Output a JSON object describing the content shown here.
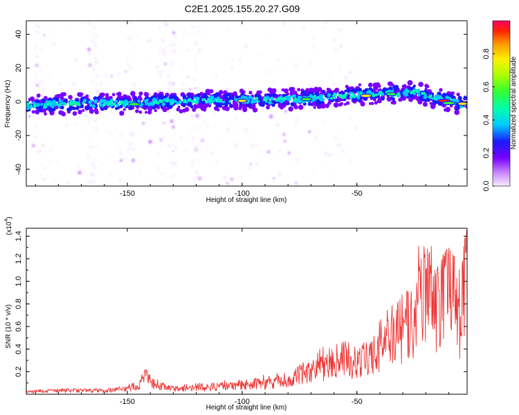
{
  "title": "C2E1.2025.155.20.27.G09",
  "colors": {
    "snr_line": "#ee3333",
    "colormap": [
      "#f5ecff",
      "#cc88ff",
      "#7a00ff",
      "#1a1aff",
      "#00ccff",
      "#00ffaa",
      "#33ff33",
      "#aaff00",
      "#ffee00",
      "#ff9900",
      "#ff2200",
      "#ff0066"
    ]
  },
  "chart_data": [
    {
      "type": "heatmap",
      "name": "spectrogram",
      "xlabel": "Height of straight line (km)",
      "ylabel": "Frequency (Hz)",
      "xlim": [
        -194,
        -2
      ],
      "ylim": [
        -50,
        48
      ],
      "xticks": [
        -150,
        -100,
        -50
      ],
      "xtick_labels": [
        "-150",
        "-100",
        "-50"
      ],
      "yticks": [
        40,
        20,
        0,
        -20,
        -40
      ],
      "ytick_labels": [
        "40",
        "20",
        "0",
        "-20",
        "-40"
      ],
      "ridge": {
        "description": "strong signal band near 0 Hz, drifting upward with height",
        "x": [
          -194,
          -170,
          -150,
          -130,
          -110,
          -90,
          -70,
          -50,
          -35,
          -25,
          -15,
          -5,
          -2
        ],
        "y": [
          -2,
          -1,
          -1,
          0,
          1,
          1,
          2,
          4,
          5,
          6,
          2,
          -1,
          -1
        ]
      },
      "colorbar": {
        "label": "Normalized spectral amplitude",
        "range": [
          0,
          1
        ],
        "ticks": [
          0.0,
          0.2,
          0.4,
          0.6,
          0.8
        ],
        "tick_labels": [
          "0.0",
          "0.2",
          "0.4",
          "0.6",
          "0.8"
        ]
      },
      "grid": false
    },
    {
      "type": "line",
      "name": "snr",
      "xlabel": "Height of straight line (km)",
      "ylabel": "SNR (10 * v/v)",
      "multiplier_label": "(x10",
      "multiplier_exponent": "4",
      "multiplier_close": ")",
      "xlim": [
        -194,
        -2
      ],
      "ylim": [
        0,
        1.47
      ],
      "xticks": [
        -150,
        -100,
        -50
      ],
      "xtick_labels": [
        "-150",
        "-100",
        "-50"
      ],
      "yticks": [
        0.2,
        0.4,
        0.6,
        0.8,
        1.0,
        1.2,
        1.4
      ],
      "ytick_labels": [
        "0.2",
        "0.4",
        "0.6",
        "0.8",
        "1.0",
        "1.2",
        "1.4"
      ],
      "series": [
        {
          "x": [
            -194,
            -180,
            -160,
            -150,
            -145,
            -142,
            -138,
            -130,
            -120,
            -110,
            -100,
            -90,
            -80,
            -75,
            -70,
            -65,
            -60,
            -55,
            -50,
            -45,
            -40,
            -35,
            -30,
            -25,
            -22,
            -18,
            -15,
            -12,
            -10,
            -7,
            -5,
            -3,
            -2
          ],
          "y": [
            0.03,
            0.04,
            0.04,
            0.06,
            0.1,
            0.2,
            0.1,
            0.06,
            0.06,
            0.08,
            0.1,
            0.12,
            0.15,
            0.2,
            0.25,
            0.32,
            0.35,
            0.38,
            0.35,
            0.4,
            0.55,
            0.7,
            0.75,
            0.8,
            1.38,
            1.2,
            0.9,
            1.1,
            1.3,
            1.0,
            0.8,
            1.38,
            1.45
          ],
          "envelope": [
            0.03,
            0.05,
            0.05,
            0.08,
            0.15,
            0.22,
            0.14,
            0.08,
            0.1,
            0.12,
            0.15,
            0.18,
            0.22,
            0.28,
            0.35,
            0.42,
            0.45,
            0.5,
            0.48,
            0.55,
            0.65,
            0.8,
            1.0,
            1.2,
            1.38,
            1.36,
            1.2,
            1.25,
            1.3,
            1.2,
            1.1,
            1.38,
            1.47
          ]
        }
      ],
      "grid": false
    }
  ]
}
